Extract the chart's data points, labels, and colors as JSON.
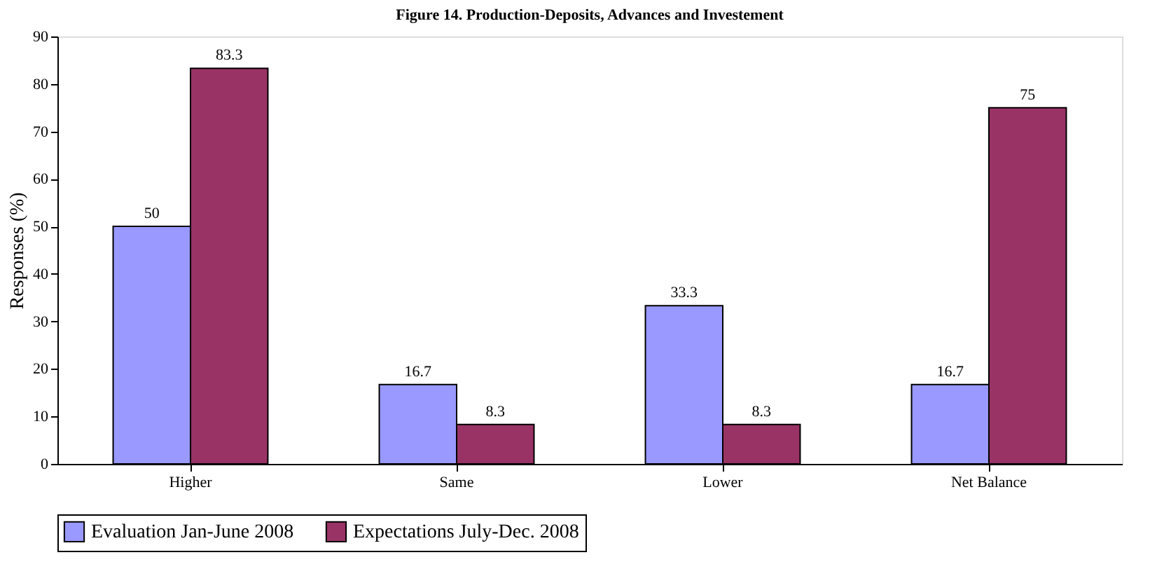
{
  "chart_data": {
    "type": "bar",
    "title": "Figure 14. Production-Deposits, Advances and Investement",
    "ylabel": "Responses (%)",
    "categories": [
      "Higher",
      "Same",
      "Lower",
      "Net Balance"
    ],
    "series": [
      {
        "name": "Evaluation Jan-June 2008",
        "color": "#9999ff",
        "values": [
          50,
          16.7,
          33.3,
          16.7
        ]
      },
      {
        "name": "Expectations July-Dec. 2008",
        "color": "#993366",
        "values": [
          83.3,
          8.3,
          8.3,
          75
        ]
      }
    ],
    "ylim": [
      0,
      90
    ],
    "yticks": [
      0,
      10,
      20,
      30,
      40,
      50,
      60,
      70,
      80,
      90
    ],
    "data_labels": true,
    "legend": "bottom",
    "grid": false
  }
}
